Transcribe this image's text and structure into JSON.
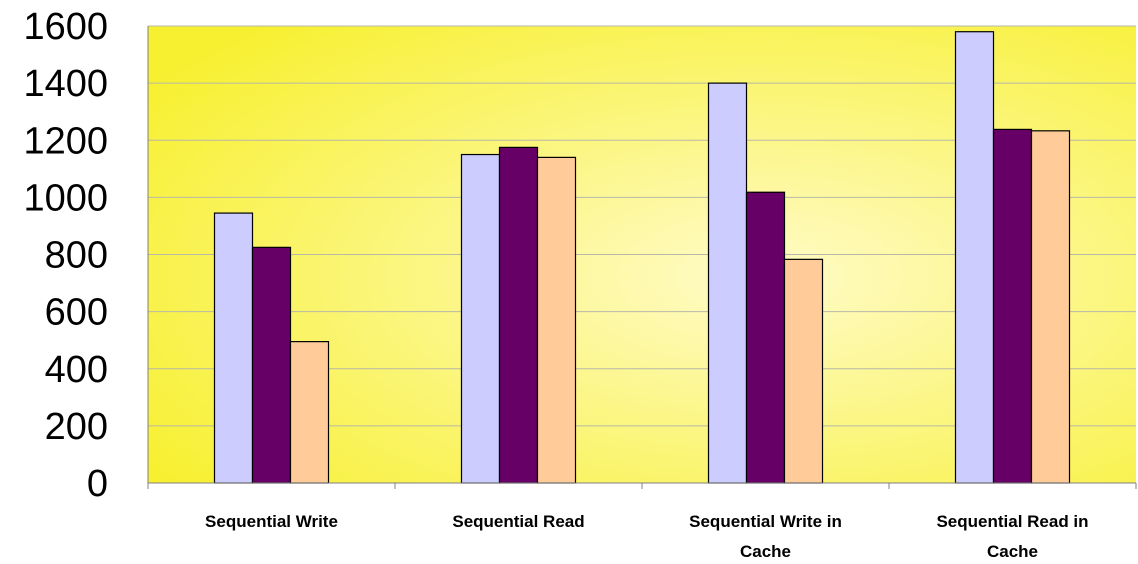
{
  "chart_data": {
    "type": "bar",
    "title": "",
    "xlabel": "",
    "ylabel": "",
    "ylim": [
      0,
      1600
    ],
    "yticks": [
      0,
      200,
      400,
      600,
      800,
      1000,
      1200,
      1400,
      1600
    ],
    "grid": true,
    "legend": "none",
    "categories": [
      [
        "Sequential Write"
      ],
      [
        "Sequential Read"
      ],
      [
        "Sequential Write in",
        "Cache"
      ],
      [
        "Sequential Read in",
        "Cache"
      ]
    ],
    "series": [
      {
        "color": "#CCCCFF",
        "values": [
          945,
          1150,
          1400,
          1580
        ]
      },
      {
        "color": "#660066",
        "values": [
          825,
          1175,
          1018,
          1238
        ]
      },
      {
        "color": "#FFCC99",
        "values": [
          495,
          1140,
          783,
          1233
        ]
      }
    ],
    "plot_background": [
      "#F7F030",
      "#FFFBC8"
    ]
  }
}
